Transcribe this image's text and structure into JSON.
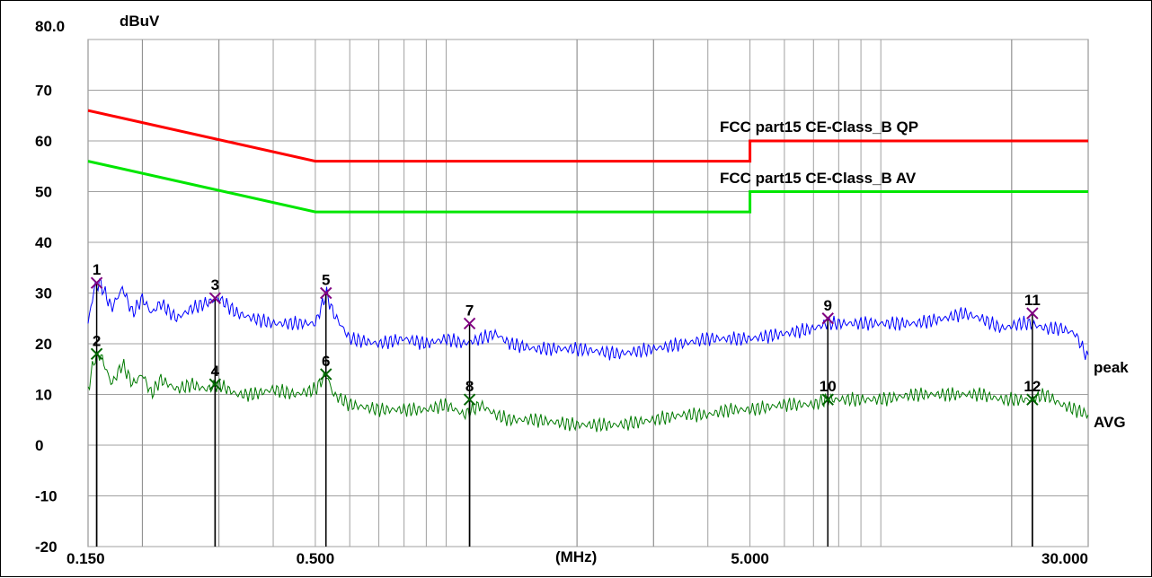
{
  "chart_data": {
    "type": "line",
    "ylabel": "dBuV",
    "xlabel": "(MHz)",
    "x_scale": "log",
    "xlim": [
      0.15,
      30.0
    ],
    "ylim": [
      -20,
      80
    ],
    "x_tick_labels": [
      {
        "v": 0.15,
        "t": "0.150"
      },
      {
        "v": 0.5,
        "t": "0.500"
      },
      {
        "v": 5.0,
        "t": "5.000"
      },
      {
        "v": 30.0,
        "t": "30.000"
      }
    ],
    "y_ticks": [
      {
        "v": 80,
        "t": "80.0"
      },
      {
        "v": 70,
        "t": "70"
      },
      {
        "v": 60,
        "t": "60"
      },
      {
        "v": 50,
        "t": "50"
      },
      {
        "v": 40,
        "t": "40"
      },
      {
        "v": 30,
        "t": "30"
      },
      {
        "v": 20,
        "t": "20"
      },
      {
        "v": 10,
        "t": "10"
      },
      {
        "v": 0,
        "t": "0"
      },
      {
        "v": -10,
        "t": "-10"
      },
      {
        "v": -20,
        "t": "-20"
      }
    ],
    "grid": true,
    "limit_lines": [
      {
        "name": "FCC part15 CE-Class_B QP",
        "color": "#ff0000",
        "points": [
          [
            0.15,
            66
          ],
          [
            0.5,
            56
          ],
          [
            5.0,
            56
          ],
          [
            5.0,
            60
          ],
          [
            30.0,
            60
          ]
        ]
      },
      {
        "name": "FCC part15 CE-Class_B AV",
        "color": "#00e600",
        "points": [
          [
            0.15,
            56
          ],
          [
            0.5,
            46
          ],
          [
            5.0,
            46
          ],
          [
            5.0,
            50
          ],
          [
            30.0,
            50
          ]
        ]
      }
    ],
    "series": [
      {
        "name": "peak",
        "color": "#0000ff",
        "points": [
          [
            0.15,
            24
          ],
          [
            0.155,
            31
          ],
          [
            0.16,
            32
          ],
          [
            0.17,
            27
          ],
          [
            0.18,
            31
          ],
          [
            0.19,
            26
          ],
          [
            0.2,
            29
          ],
          [
            0.21,
            26
          ],
          [
            0.22,
            28
          ],
          [
            0.24,
            25
          ],
          [
            0.26,
            27
          ],
          [
            0.28,
            28
          ],
          [
            0.3,
            29
          ],
          [
            0.33,
            26
          ],
          [
            0.36,
            25
          ],
          [
            0.4,
            24
          ],
          [
            0.45,
            24
          ],
          [
            0.5,
            24
          ],
          [
            0.52,
            28
          ],
          [
            0.53,
            30
          ],
          [
            0.55,
            26
          ],
          [
            0.6,
            21
          ],
          [
            0.7,
            20
          ],
          [
            0.8,
            21
          ],
          [
            0.9,
            20
          ],
          [
            1.0,
            21
          ],
          [
            1.1,
            20
          ],
          [
            1.2,
            21
          ],
          [
            1.3,
            22
          ],
          [
            1.4,
            20
          ],
          [
            1.6,
            19
          ],
          [
            2.0,
            19
          ],
          [
            2.5,
            18
          ],
          [
            3.0,
            19
          ],
          [
            3.5,
            20
          ],
          [
            4.0,
            21
          ],
          [
            4.5,
            21
          ],
          [
            5.0,
            21
          ],
          [
            6.0,
            22
          ],
          [
            7.0,
            23
          ],
          [
            7.5,
            24
          ],
          [
            8.5,
            24
          ],
          [
            10.0,
            24
          ],
          [
            12.0,
            24
          ],
          [
            14.0,
            25
          ],
          [
            15.5,
            26
          ],
          [
            17.0,
            25
          ],
          [
            19.0,
            23
          ],
          [
            21.0,
            24
          ],
          [
            22.0,
            24
          ],
          [
            24.0,
            23
          ],
          [
            26.0,
            23
          ],
          [
            28.0,
            22
          ],
          [
            30.0,
            17
          ]
        ]
      },
      {
        "name": "AVG",
        "color": "#007a00",
        "points": [
          [
            0.15,
            11
          ],
          [
            0.155,
            17
          ],
          [
            0.16,
            18
          ],
          [
            0.17,
            12
          ],
          [
            0.18,
            16
          ],
          [
            0.19,
            12
          ],
          [
            0.2,
            14
          ],
          [
            0.21,
            10
          ],
          [
            0.22,
            13
          ],
          [
            0.24,
            11
          ],
          [
            0.26,
            12
          ],
          [
            0.28,
            11
          ],
          [
            0.3,
            12
          ],
          [
            0.33,
            10
          ],
          [
            0.36,
            10
          ],
          [
            0.4,
            11
          ],
          [
            0.45,
            10
          ],
          [
            0.5,
            11
          ],
          [
            0.52,
            13
          ],
          [
            0.53,
            14
          ],
          [
            0.55,
            10
          ],
          [
            0.6,
            8
          ],
          [
            0.7,
            7
          ],
          [
            0.8,
            7
          ],
          [
            0.9,
            7
          ],
          [
            1.0,
            8
          ],
          [
            1.1,
            6
          ],
          [
            1.2,
            8
          ],
          [
            1.3,
            6
          ],
          [
            1.4,
            5
          ],
          [
            1.6,
            5
          ],
          [
            2.0,
            4
          ],
          [
            2.5,
            4
          ],
          [
            3.0,
            5
          ],
          [
            3.5,
            6
          ],
          [
            4.0,
            6
          ],
          [
            4.5,
            7
          ],
          [
            5.0,
            7
          ],
          [
            6.0,
            8
          ],
          [
            7.0,
            8
          ],
          [
            7.5,
            9
          ],
          [
            8.5,
            9
          ],
          [
            10.0,
            9
          ],
          [
            12.0,
            10
          ],
          [
            14.0,
            10
          ],
          [
            15.5,
            10
          ],
          [
            17.0,
            10
          ],
          [
            19.0,
            9
          ],
          [
            21.0,
            9
          ],
          [
            22.0,
            9
          ],
          [
            24.0,
            10
          ],
          [
            26.0,
            8
          ],
          [
            28.0,
            7
          ],
          [
            30.0,
            6
          ]
        ]
      }
    ],
    "markers": [
      {
        "label": "1",
        "x": 0.157,
        "y": 32,
        "kind": "peak"
      },
      {
        "label": "2",
        "x": 0.157,
        "y": 18,
        "kind": "avg"
      },
      {
        "label": "3",
        "x": 0.294,
        "y": 29,
        "kind": "peak"
      },
      {
        "label": "4",
        "x": 0.294,
        "y": 12,
        "kind": "avg"
      },
      {
        "label": "5",
        "x": 0.529,
        "y": 30,
        "kind": "peak"
      },
      {
        "label": "6",
        "x": 0.529,
        "y": 14,
        "kind": "avg"
      },
      {
        "label": "7",
        "x": 1.132,
        "y": 24,
        "kind": "peak"
      },
      {
        "label": "8",
        "x": 1.132,
        "y": 9,
        "kind": "avg"
      },
      {
        "label": "9",
        "x": 7.553,
        "y": 25,
        "kind": "peak"
      },
      {
        "label": "10",
        "x": 7.553,
        "y": 9,
        "kind": "avg"
      },
      {
        "label": "11",
        "x": 22.32,
        "y": 26,
        "kind": "peak"
      },
      {
        "label": "12",
        "x": 22.32,
        "y": 9,
        "kind": "avg"
      }
    ],
    "trace_labels": [
      {
        "text": "peak",
        "color": "#0000ff"
      },
      {
        "text": "AVG",
        "color": "#007a00"
      }
    ]
  }
}
